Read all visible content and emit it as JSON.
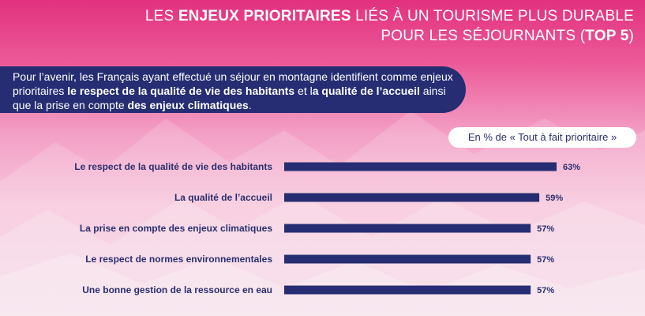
{
  "title": {
    "line1_pre": "Les ",
    "line1_bold": "enjeux prioritaires",
    "line1_post": " liés à un tourisme plus durable",
    "line2_pre": "pour les séjournants (",
    "line2_bold": "top 5",
    "line2_post": ")"
  },
  "intro": {
    "t1": "Pour l’avenir, les Français ayant effectué un séjour en montagne identifient comme enjeux prioritaires ",
    "b1": "le respect de la qualité de vie des habitants",
    "t2": " et l",
    "b2": "a qualité de l’accueil",
    "t3": " ainsi que la prise en compte ",
    "b3": "des enjeux climatiques",
    "t4": "."
  },
  "unit_label": "En % de « Tout à fait prioritaire »",
  "colors": {
    "bar": "#262d72",
    "label": "#2a2f6e",
    "background_top": "#e2317f",
    "background_bottom": "#f3d4e4"
  },
  "chart_data": {
    "type": "bar",
    "orientation": "horizontal",
    "categories": [
      "Le respect de la qualité de vie des habitants",
      "La qualité de l’accueil",
      "La prise en compte des enjeux climatiques",
      "Le respect de normes environnementales",
      "Une bonne gestion de la ressource en eau"
    ],
    "values": [
      63,
      59,
      57,
      57,
      57
    ],
    "value_labels": [
      "63%",
      "59%",
      "57%",
      "57%",
      "57%"
    ],
    "unit": "%",
    "xlim": [
      0,
      63
    ],
    "grid": false
  }
}
